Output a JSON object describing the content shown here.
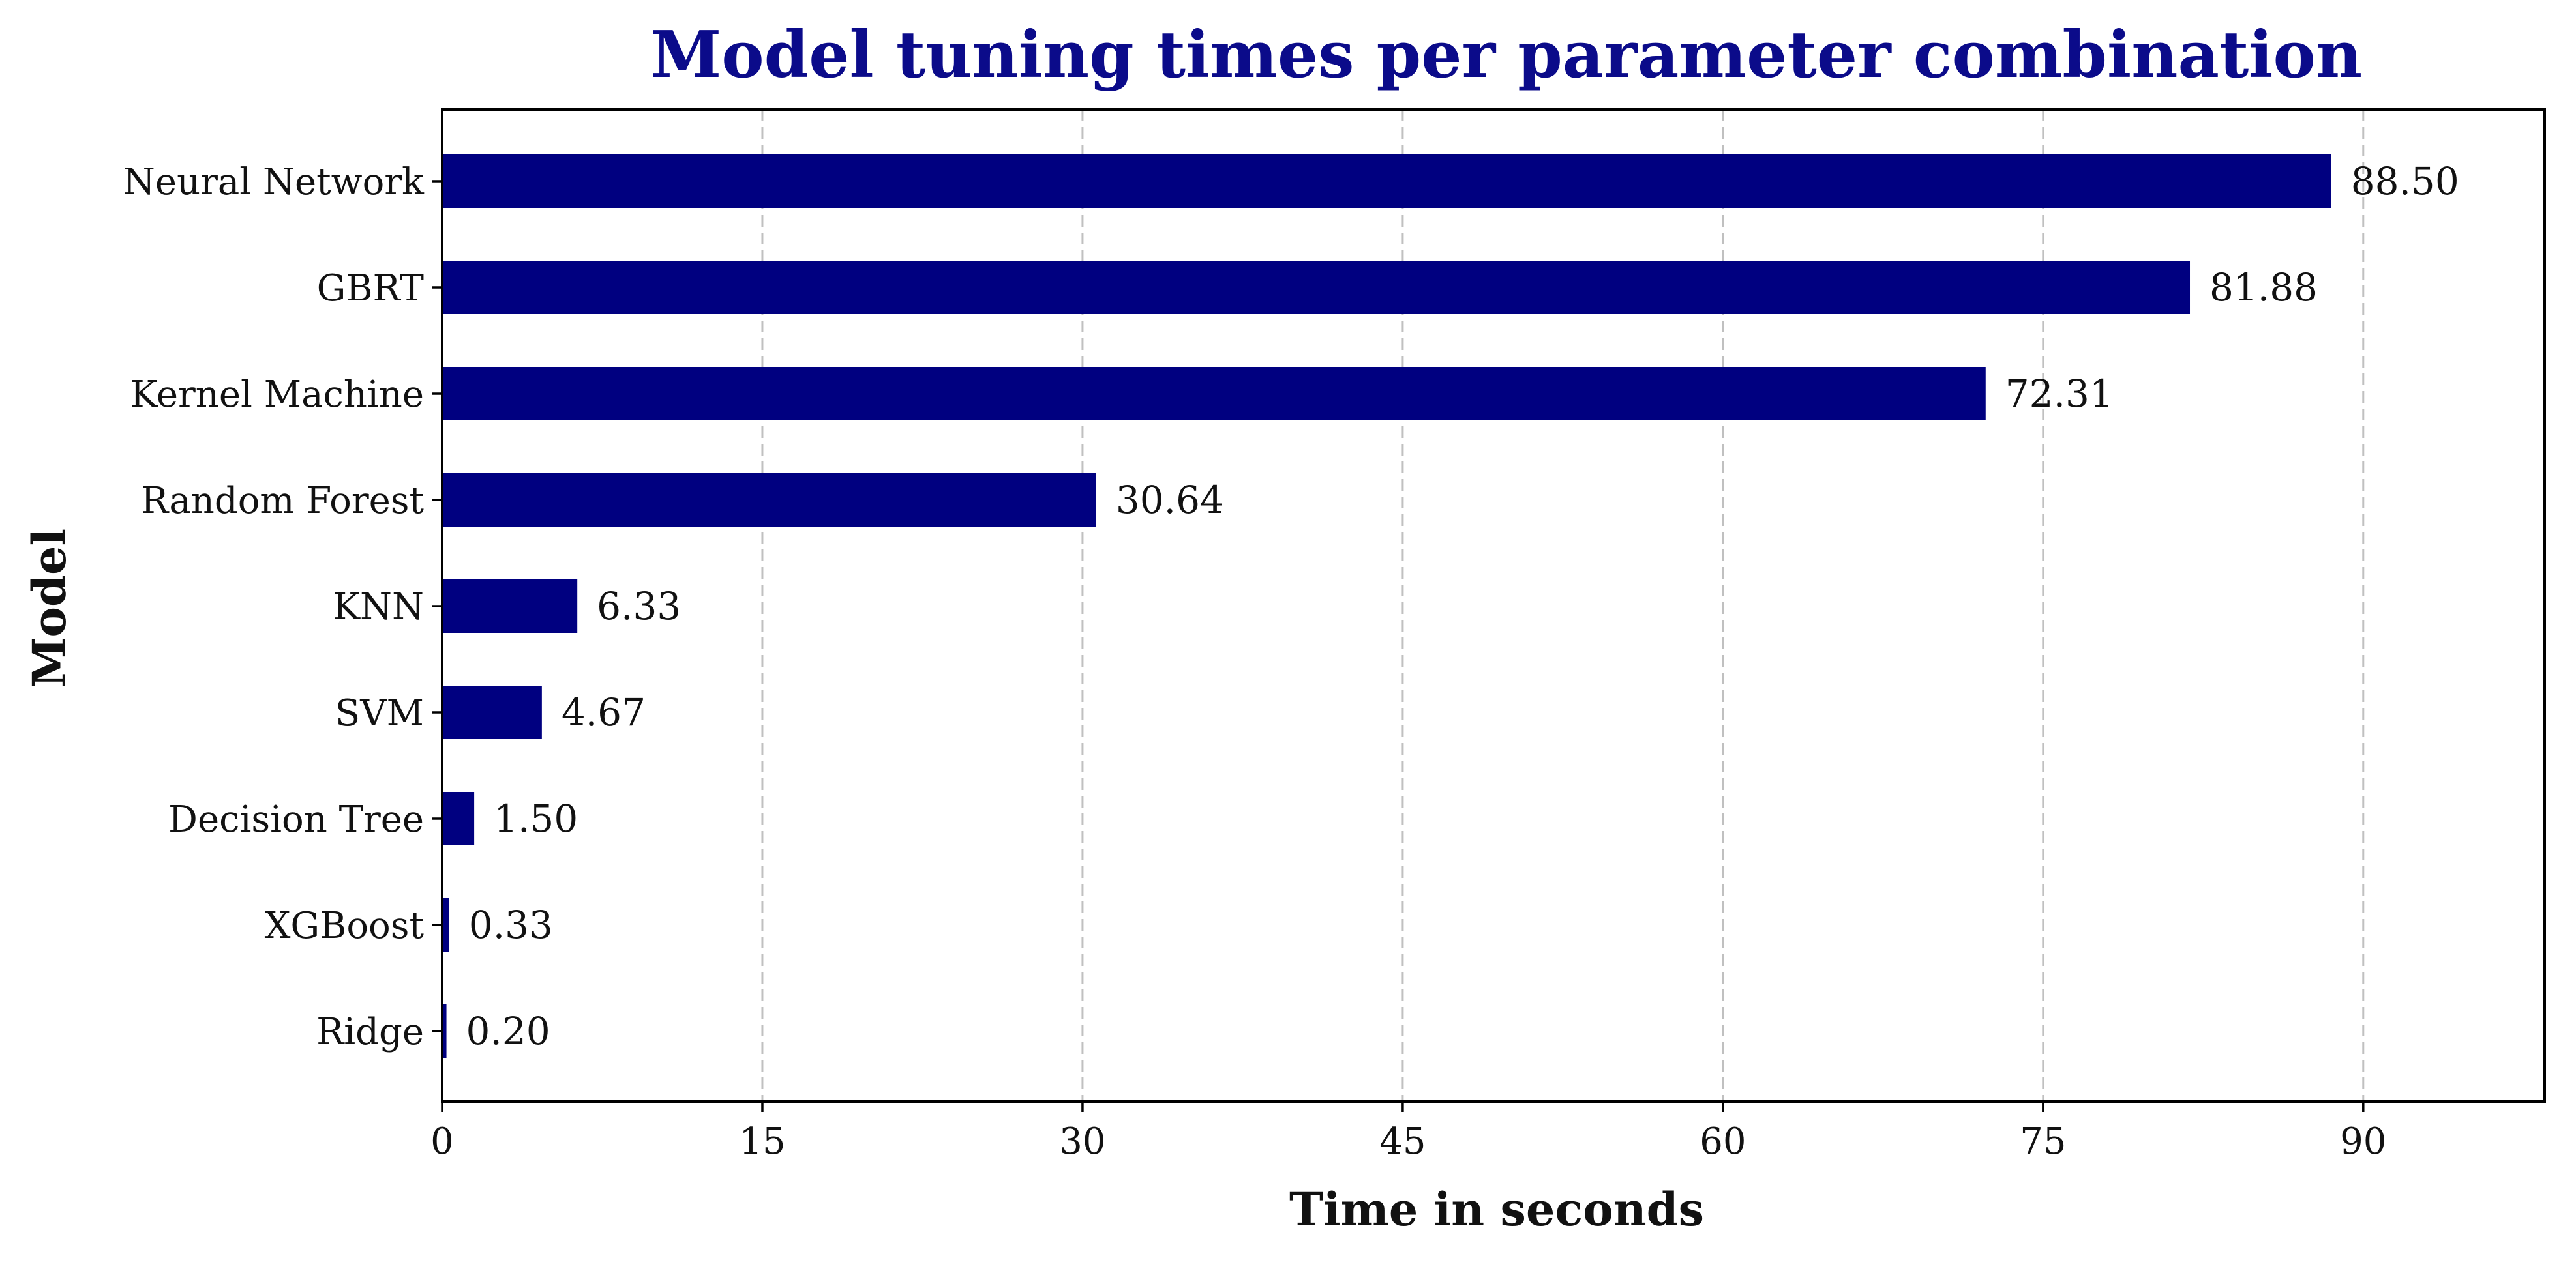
{
  "chart_data": {
    "type": "bar",
    "orientation": "horizontal",
    "title": "Model tuning times per parameter combination",
    "xlabel": "Time in seconds",
    "ylabel": "Model",
    "categories": [
      "Neural Network",
      "GBRT",
      "Kernel Machine",
      "Random Forest",
      "KNN",
      "SVM",
      "Decision Tree",
      "XGBoost",
      "Ridge"
    ],
    "values": [
      88.5,
      81.88,
      72.31,
      30.64,
      6.33,
      4.67,
      1.5,
      0.33,
      0.2
    ],
    "data_labels": [
      "88.50",
      "81.88",
      "72.31",
      "30.64",
      "6.33",
      "4.67",
      "1.50",
      "0.33",
      "0.20"
    ],
    "xlim": [
      0,
      98.5
    ],
    "xticks": [
      0,
      15,
      30,
      45,
      60,
      75,
      90
    ],
    "grid": "x-dashed",
    "bar_color": "#000080",
    "title_color": "#0b0b8a"
  }
}
